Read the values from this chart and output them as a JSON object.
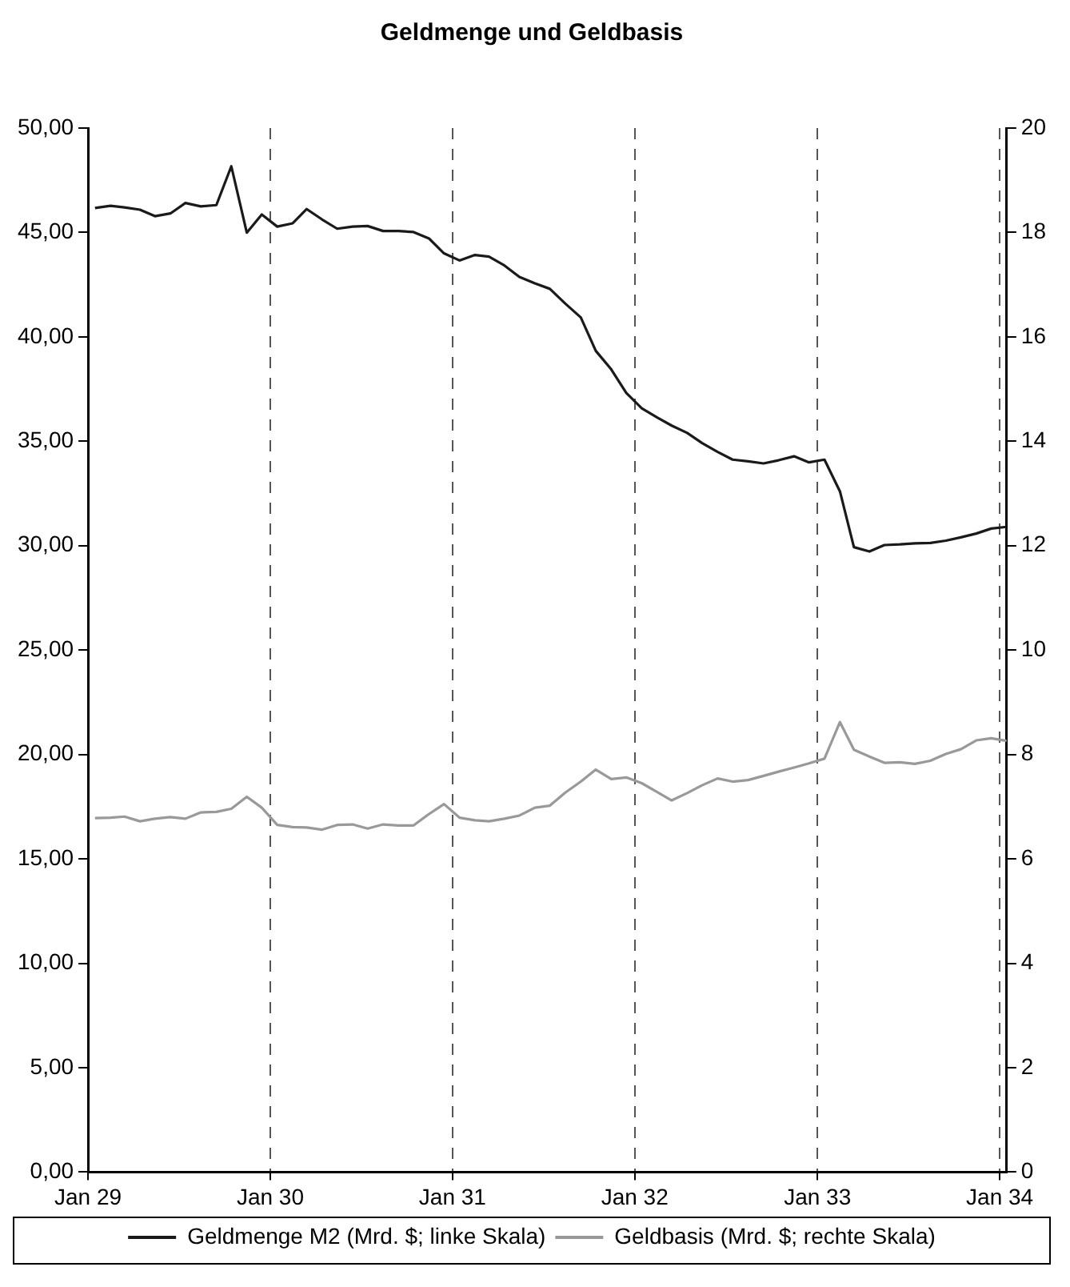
{
  "chart_data": {
    "type": "line",
    "title": "Geldmenge und Geldbasis",
    "x": [
      "1929-01-15",
      "1929-02-15",
      "1929-03-15",
      "1929-04-15",
      "1929-05-15",
      "1929-06-15",
      "1929-07-15",
      "1929-08-15",
      "1929-09-15",
      "1929-10-15",
      "1929-11-15",
      "1929-12-15",
      "1930-01-15",
      "1930-02-15",
      "1930-03-15",
      "1930-04-15",
      "1930-05-15",
      "1930-06-15",
      "1930-07-15",
      "1930-08-15",
      "1930-09-15",
      "1930-10-15",
      "1930-11-15",
      "1930-12-15",
      "1931-01-15",
      "1931-02-15",
      "1931-03-15",
      "1931-04-15",
      "1931-05-15",
      "1931-06-15",
      "1931-07-15",
      "1931-08-15",
      "1931-09-15",
      "1931-10-15",
      "1931-11-15",
      "1931-12-15",
      "1932-01-15",
      "1932-02-15",
      "1932-03-15",
      "1932-04-15",
      "1932-05-15",
      "1932-06-15",
      "1932-07-15",
      "1932-08-15",
      "1932-09-15",
      "1932-10-15",
      "1932-11-15",
      "1932-12-15",
      "1933-01-15",
      "1933-02-15",
      "1933-03-15",
      "1933-04-15",
      "1933-05-15",
      "1933-06-15",
      "1933-07-15",
      "1933-08-15",
      "1933-09-15",
      "1933-10-15",
      "1933-11-15",
      "1933-12-15",
      "1934-01-15"
    ],
    "series": [
      {
        "name": "Geldmenge M2 (Mrd. $; linke Skala)",
        "color": "#1a1a1a",
        "values": [
          46.17,
          46.28,
          46.2,
          46.09,
          45.78,
          45.91,
          46.41,
          46.25,
          46.31,
          48.17,
          44.99,
          45.86,
          45.28,
          45.44,
          46.12,
          45.62,
          45.18,
          45.28,
          45.31,
          45.07,
          45.07,
          45.02,
          44.71,
          44.0,
          43.66,
          43.92,
          43.84,
          43.42,
          42.87,
          42.56,
          42.3,
          41.59,
          40.93,
          39.33,
          38.44,
          37.32,
          36.58,
          36.14,
          35.75,
          35.4,
          34.91,
          34.49,
          34.12,
          34.04,
          33.94,
          34.09,
          34.28,
          33.99,
          34.12,
          32.6,
          29.93,
          29.72,
          30.03,
          30.06,
          30.11,
          30.13,
          30.24,
          30.4,
          30.58,
          30.82,
          30.9
        ]
      },
      {
        "name": "Geldbasis (Mrd. $; rechte Skala)",
        "color": "#999999",
        "axis": "y2",
        "values": [
          6.78,
          6.79,
          6.81,
          6.72,
          6.77,
          6.8,
          6.77,
          6.89,
          6.9,
          6.96,
          7.19,
          6.98,
          6.65,
          6.61,
          6.6,
          6.56,
          6.65,
          6.66,
          6.58,
          6.66,
          6.64,
          6.64,
          6.86,
          7.05,
          6.79,
          6.74,
          6.72,
          6.77,
          6.83,
          6.98,
          7.02,
          7.27,
          7.48,
          7.71,
          7.53,
          7.56,
          7.45,
          7.28,
          7.12,
          7.26,
          7.41,
          7.54,
          7.48,
          7.51,
          7.59,
          7.67,
          7.75,
          7.83,
          7.92,
          8.62,
          8.09,
          7.96,
          7.84,
          7.85,
          7.82,
          7.88,
          8.01,
          8.1,
          8.27,
          8.31,
          8.26
        ]
      }
    ],
    "xlim": [
      "1929-01-01",
      "1934-01-15"
    ],
    "xticks": [
      {
        "value": "1929-01-01",
        "label": "Jan 29"
      },
      {
        "value": "1930-01-01",
        "label": "Jan 30"
      },
      {
        "value": "1931-01-01",
        "label": "Jan 31"
      },
      {
        "value": "1932-01-01",
        "label": "Jan 32"
      },
      {
        "value": "1933-01-01",
        "label": "Jan 33"
      },
      {
        "value": "1934-01-01",
        "label": "Jan 34"
      }
    ],
    "ylim": [
      0,
      50
    ],
    "yticks": [
      {
        "value": 0,
        "label": "0,00"
      },
      {
        "value": 5,
        "label": "5,00"
      },
      {
        "value": 10,
        "label": "10,00"
      },
      {
        "value": 15,
        "label": "15,00"
      },
      {
        "value": 20,
        "label": "20,00"
      },
      {
        "value": 25,
        "label": "25,00"
      },
      {
        "value": 30,
        "label": "30,00"
      },
      {
        "value": 35,
        "label": "35,00"
      },
      {
        "value": 40,
        "label": "40,00"
      },
      {
        "value": 45,
        "label": "45,00"
      },
      {
        "value": 50,
        "label": "50,00"
      }
    ],
    "y2lim": [
      0,
      20
    ],
    "y2ticks": [
      0,
      2,
      4,
      6,
      8,
      10,
      12,
      14,
      16,
      18,
      20
    ],
    "grid": "x",
    "legend": "bottom",
    "marker": "none",
    "line_style": "solid"
  }
}
